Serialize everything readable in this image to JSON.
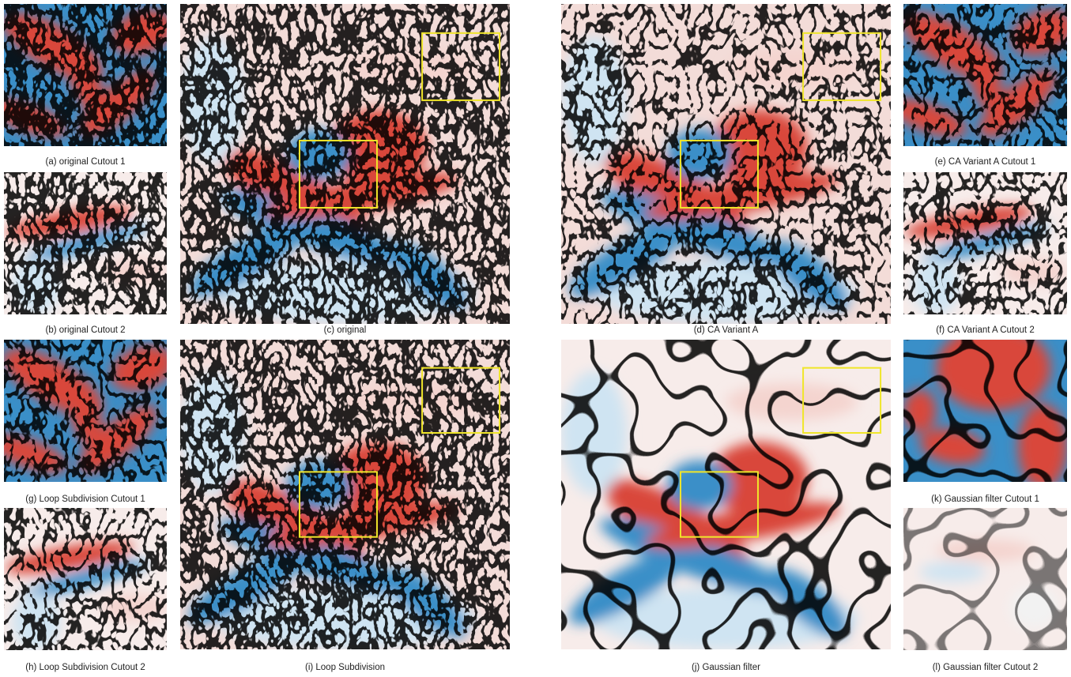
{
  "panels": [
    {
      "caption": "(a) original Cutout 1"
    },
    {
      "caption": "(b) original Cutout 2"
    },
    {
      "caption": "(c) original"
    },
    {
      "caption": "(d) CA Variant A"
    },
    {
      "caption": "(e) CA Variant A Cutout 1"
    },
    {
      "caption": "(f) CA Variant A Cutout 2"
    },
    {
      "caption": "(g) Loop Subdivision Cutout 1"
    },
    {
      "caption": "(h) Loop Subdivision Cutout 2"
    },
    {
      "caption": "(i) Loop Subdivision"
    },
    {
      "caption": "(j) Gaussian filter"
    },
    {
      "caption": "(k) Gaussian filter Cutout 1"
    },
    {
      "caption": "(l) Gaussian filter Cutout 2"
    }
  ]
}
